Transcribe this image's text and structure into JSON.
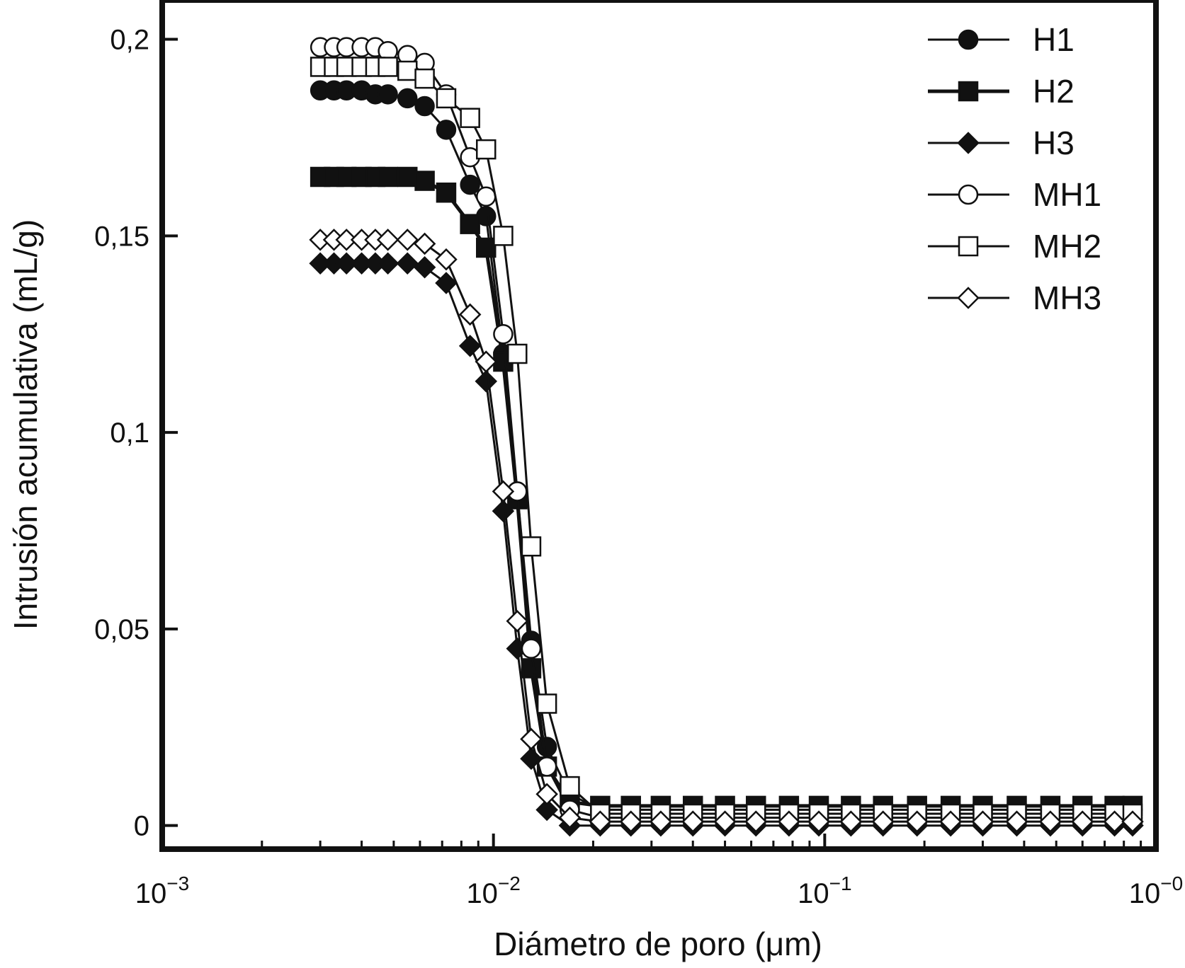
{
  "chart_data": {
    "type": "line",
    "xlabel": "Diámetro de poro (μm)",
    "ylabel": "Intrusión acumulativa (mL/g)",
    "x_scale": "log",
    "xlim": [
      0.001,
      1.0
    ],
    "ylim": [
      -0.006,
      0.21
    ],
    "x_ticks": [
      {
        "value": 0.001,
        "base": "10",
        "exp": "−3"
      },
      {
        "value": 0.01,
        "base": "10",
        "exp": "−2"
      },
      {
        "value": 0.1,
        "base": "10",
        "exp": "−1"
      },
      {
        "value": 1.0,
        "base": "10",
        "exp": "−0"
      }
    ],
    "y_ticks": [
      {
        "value": 0,
        "label": "0"
      },
      {
        "value": 0.05,
        "label": "0,05"
      },
      {
        "value": 0.1,
        "label": "0,1"
      },
      {
        "value": 0.15,
        "label": "0,15"
      },
      {
        "value": 0.2,
        "label": "0,2"
      }
    ],
    "grid": false,
    "legend_position": "top-right",
    "x": [
      0.003,
      0.0033,
      0.0036,
      0.004,
      0.0044,
      0.0048,
      0.0055,
      0.0062,
      0.0072,
      0.0085,
      0.0095,
      0.0107,
      0.0118,
      0.013,
      0.0145,
      0.017,
      0.021,
      0.026,
      0.032,
      0.04,
      0.05,
      0.062,
      0.078,
      0.096,
      0.12,
      0.15,
      0.19,
      0.24,
      0.3,
      0.38,
      0.48,
      0.6,
      0.75,
      0.85
    ],
    "series": [
      {
        "name": "H1",
        "marker": "circle",
        "filled": true,
        "line_width": 3,
        "values": [
          0.187,
          0.187,
          0.187,
          0.187,
          0.186,
          0.186,
          0.185,
          0.183,
          0.177,
          0.163,
          0.155,
          0.12,
          0.085,
          0.047,
          0.02,
          0.008,
          0.004,
          0.004,
          0.004,
          0.004,
          0.004,
          0.004,
          0.004,
          0.004,
          0.004,
          0.004,
          0.004,
          0.004,
          0.004,
          0.004,
          0.004,
          0.004,
          0.004,
          0.004
        ]
      },
      {
        "name": "H2",
        "marker": "square",
        "filled": true,
        "line_width": 5,
        "values": [
          0.165,
          0.165,
          0.165,
          0.165,
          0.165,
          0.165,
          0.165,
          0.164,
          0.161,
          0.153,
          0.147,
          0.118,
          0.083,
          0.04,
          0.015,
          0.006,
          0.005,
          0.005,
          0.005,
          0.005,
          0.005,
          0.005,
          0.005,
          0.005,
          0.005,
          0.005,
          0.005,
          0.005,
          0.005,
          0.005,
          0.005,
          0.005,
          0.005,
          0.005
        ]
      },
      {
        "name": "H3",
        "marker": "diamond",
        "filled": true,
        "line_width": 3,
        "values": [
          0.143,
          0.143,
          0.143,
          0.143,
          0.143,
          0.143,
          0.143,
          0.142,
          0.138,
          0.122,
          0.113,
          0.08,
          0.045,
          0.017,
          0.004,
          0.0,
          0.0,
          0.0,
          0.0,
          0.0,
          0.0,
          0.0,
          0.0,
          0.0,
          0.0,
          0.0,
          0.0,
          0.0,
          0.0,
          0.0,
          0.0,
          0.0,
          0.0,
          0.0
        ]
      },
      {
        "name": "MH1",
        "marker": "circle",
        "filled": false,
        "line_width": 3,
        "values": [
          0.198,
          0.198,
          0.198,
          0.198,
          0.198,
          0.197,
          0.196,
          0.194,
          0.186,
          0.17,
          0.16,
          0.125,
          0.085,
          0.045,
          0.015,
          0.004,
          0.002,
          0.002,
          0.002,
          0.002,
          0.002,
          0.002,
          0.002,
          0.002,
          0.002,
          0.002,
          0.002,
          0.002,
          0.002,
          0.002,
          0.002,
          0.002,
          0.002,
          0.002
        ]
      },
      {
        "name": "MH2",
        "marker": "square",
        "filled": false,
        "line_width": 3,
        "values": [
          0.193,
          0.193,
          0.193,
          0.193,
          0.193,
          0.193,
          0.192,
          0.19,
          0.185,
          0.18,
          0.172,
          0.15,
          0.12,
          0.071,
          0.031,
          0.01,
          0.003,
          0.003,
          0.003,
          0.003,
          0.003,
          0.003,
          0.003,
          0.003,
          0.003,
          0.003,
          0.003,
          0.003,
          0.003,
          0.003,
          0.003,
          0.003,
          0.003,
          0.003
        ]
      },
      {
        "name": "MH3",
        "marker": "diamond",
        "filled": false,
        "line_width": 3,
        "values": [
          0.149,
          0.149,
          0.149,
          0.149,
          0.149,
          0.149,
          0.149,
          0.148,
          0.144,
          0.13,
          0.118,
          0.085,
          0.052,
          0.022,
          0.008,
          0.002,
          0.001,
          0.001,
          0.001,
          0.001,
          0.001,
          0.001,
          0.001,
          0.001,
          0.001,
          0.001,
          0.001,
          0.001,
          0.001,
          0.001,
          0.001,
          0.001,
          0.001,
          0.001
        ]
      }
    ]
  }
}
